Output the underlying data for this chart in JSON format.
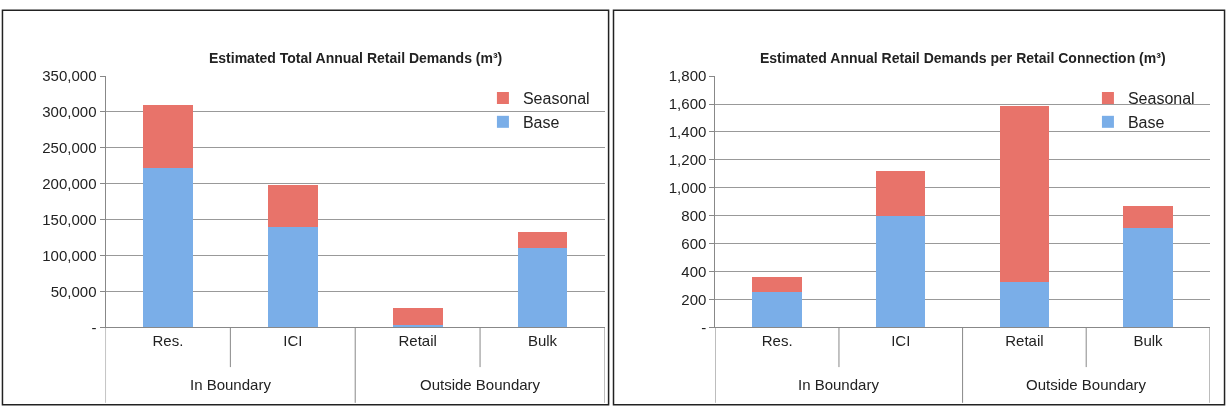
{
  "chart_data": [
    {
      "type": "bar",
      "title": "Estimated Total Annual Retail Demands (m³)",
      "categories": [
        "Res.",
        "ICI",
        "Retail",
        "Bulk"
      ],
      "stacked": true,
      "series": [
        {
          "name": "Base",
          "color": "#7aaee8",
          "values": [
            222000,
            140000,
            4000,
            110000
          ]
        },
        {
          "name": "Seasonal",
          "color": "#e8736a",
          "values": [
            88000,
            59000,
            23000,
            23000
          ]
        }
      ],
      "ylim": [
        0,
        350000
      ],
      "yticks": [
        {
          "value": 0,
          "label": "-"
        },
        {
          "value": 50000,
          "label": "50,000"
        },
        {
          "value": 100000,
          "label": "100,000"
        },
        {
          "value": 150000,
          "label": "150,000"
        },
        {
          "value": 200000,
          "label": "200,000"
        },
        {
          "value": 250000,
          "label": "250,000"
        },
        {
          "value": 300000,
          "label": "300,000"
        },
        {
          "value": 350000,
          "label": "350,000"
        }
      ],
      "annotations": [
        "In Boundary",
        "Outside Boundary"
      ],
      "grid": "y",
      "legend": "top right"
    },
    {
      "type": "bar",
      "title": "Estimated Annual Retail Demands per Retail Connection (m³)",
      "categories": [
        "Res.",
        "ICI",
        "Retail",
        "Bulk"
      ],
      "stacked": true,
      "series": [
        {
          "name": "Base",
          "color": "#7aaee8",
          "values": [
            255,
            795,
            327,
            710
          ]
        },
        {
          "name": "Seasonal",
          "color": "#e8736a",
          "values": [
            107,
            325,
            1260,
            156
          ]
        }
      ],
      "ylim": [
        0,
        1800
      ],
      "yticks": [
        {
          "value": 0,
          "label": "-"
        },
        {
          "value": 200,
          "label": "200"
        },
        {
          "value": 400,
          "label": "400"
        },
        {
          "value": 600,
          "label": "600"
        },
        {
          "value": 800,
          "label": "800"
        },
        {
          "value": 1000,
          "label": "1,000"
        },
        {
          "value": 1200,
          "label": "1,200"
        },
        {
          "value": 1400,
          "label": "1,400"
        },
        {
          "value": 1600,
          "label": "1,600"
        },
        {
          "value": 1800,
          "label": "1,800"
        }
      ],
      "annotations": [
        "In Boundary",
        "Outside Boundary"
      ],
      "grid": "y",
      "legend": "top right"
    }
  ]
}
